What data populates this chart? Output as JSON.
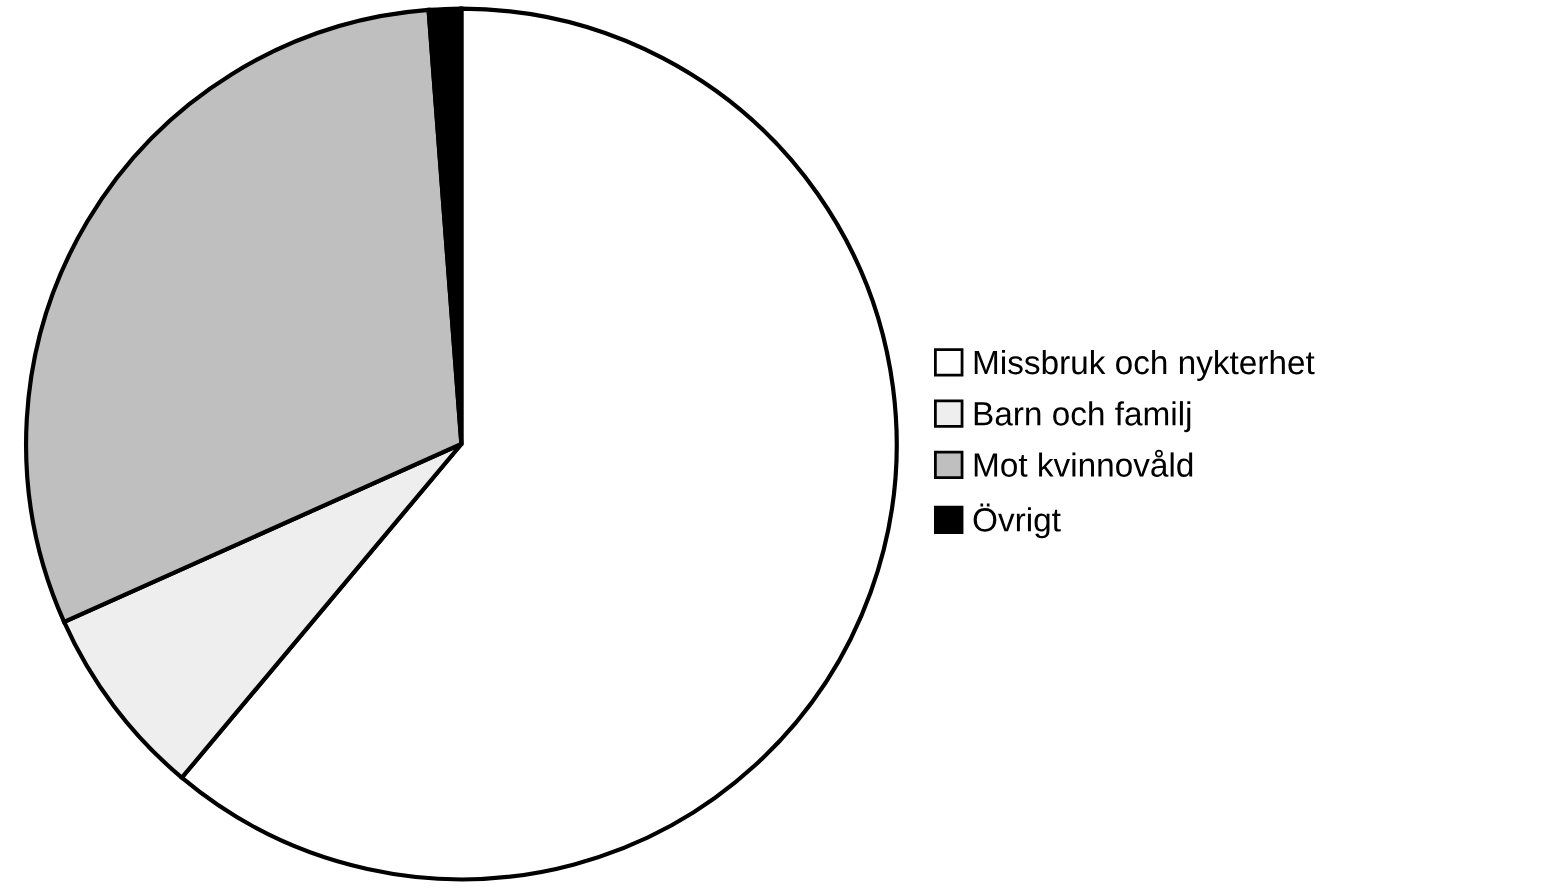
{
  "chart_data": {
    "type": "pie",
    "categories": [
      "Missbruk och nykterhet",
      "Barn och familj",
      "Mot kvinnovåld",
      "Övrigt"
    ],
    "values": [
      61.1,
      7.2,
      30.5,
      1.2
    ],
    "colors": [
      "#ffffff",
      "#eeeeee",
      "#bfbfbf",
      "#000000"
    ],
    "legend": "right"
  }
}
